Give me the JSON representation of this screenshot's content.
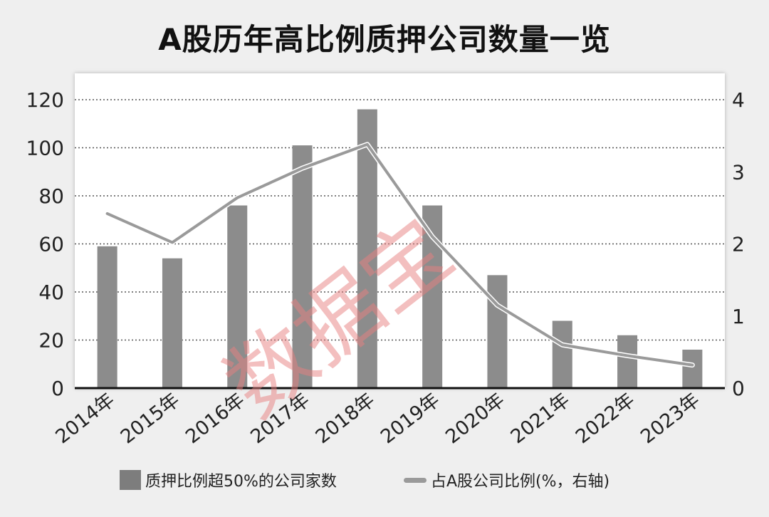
{
  "title": "A股历年高比例质押公司数量一览",
  "watermark": "数据宝",
  "legend": {
    "bar_label": "质押比例超50%的公司家数",
    "line_label": "占A股公司比例(%，右轴)"
  },
  "colors": {
    "bar": "#8c8c8c",
    "line": "#9a9a9a",
    "watermark": "#e88080",
    "background": "#efefef",
    "plot_bg": "#ffffff"
  },
  "chart_data": {
    "type": "bar",
    "title": "A股历年高比例质押公司数量一览",
    "categories": [
      "2014年",
      "2015年",
      "2016年",
      "2017年",
      "2018年",
      "2019年",
      "2020年",
      "2021年",
      "2022年",
      "2023年"
    ],
    "series": [
      {
        "name": "质押比例超50%的公司家数",
        "type": "bar",
        "axis": "left",
        "values": [
          59,
          54,
          76,
          101,
          116,
          76,
          47,
          28,
          22,
          16
        ]
      },
      {
        "name": "占A股公司比例(%，右轴)",
        "type": "line",
        "axis": "right",
        "values": [
          2.42,
          2.02,
          2.64,
          3.05,
          3.38,
          2.1,
          1.15,
          0.6,
          0.45,
          0.32
        ]
      }
    ],
    "xlabel": "",
    "ylabel": "",
    "ylim": [
      0,
      120
    ],
    "y_ticks": [
      0,
      20,
      40,
      60,
      80,
      100,
      120
    ],
    "y2lim": [
      0,
      4
    ],
    "y2_ticks": [
      0,
      1,
      2,
      3,
      4
    ],
    "grid": true,
    "legend_position": "bottom"
  }
}
